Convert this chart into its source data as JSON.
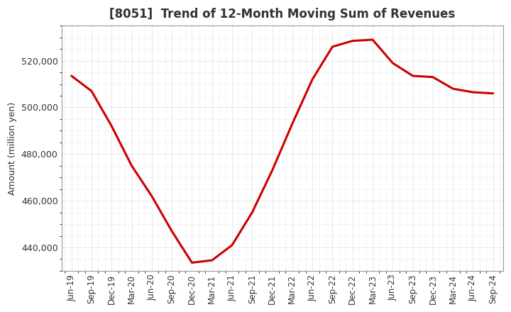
{
  "title": "[8051]  Trend of 12-Month Moving Sum of Revenues",
  "ylabel": "Amount (million yen)",
  "line_color": "#cc0000",
  "background_color": "#ffffff",
  "plot_bg_color": "#ffffff",
  "grid_color": "#bbbbbb",
  "title_color": "#333333",
  "ylim": [
    430000,
    535000
  ],
  "yticks": [
    440000,
    460000,
    480000,
    500000,
    520000
  ],
  "labels": [
    "Jun-19",
    "Sep-19",
    "Dec-19",
    "Mar-20",
    "Jun-20",
    "Sep-20",
    "Dec-20",
    "Mar-21",
    "Jun-21",
    "Sep-21",
    "Dec-21",
    "Mar-22",
    "Jun-22",
    "Sep-22",
    "Dec-22",
    "Mar-23",
    "Jun-23",
    "Sep-23",
    "Dec-23",
    "Mar-24",
    "Jun-24",
    "Sep-24"
  ],
  "values": [
    513500,
    507000,
    492000,
    475000,
    462000,
    447000,
    433500,
    434500,
    441000,
    455000,
    473000,
    493000,
    512000,
    526000,
    528500,
    529000,
    519000,
    513500,
    513000,
    508000,
    506500,
    506000
  ]
}
